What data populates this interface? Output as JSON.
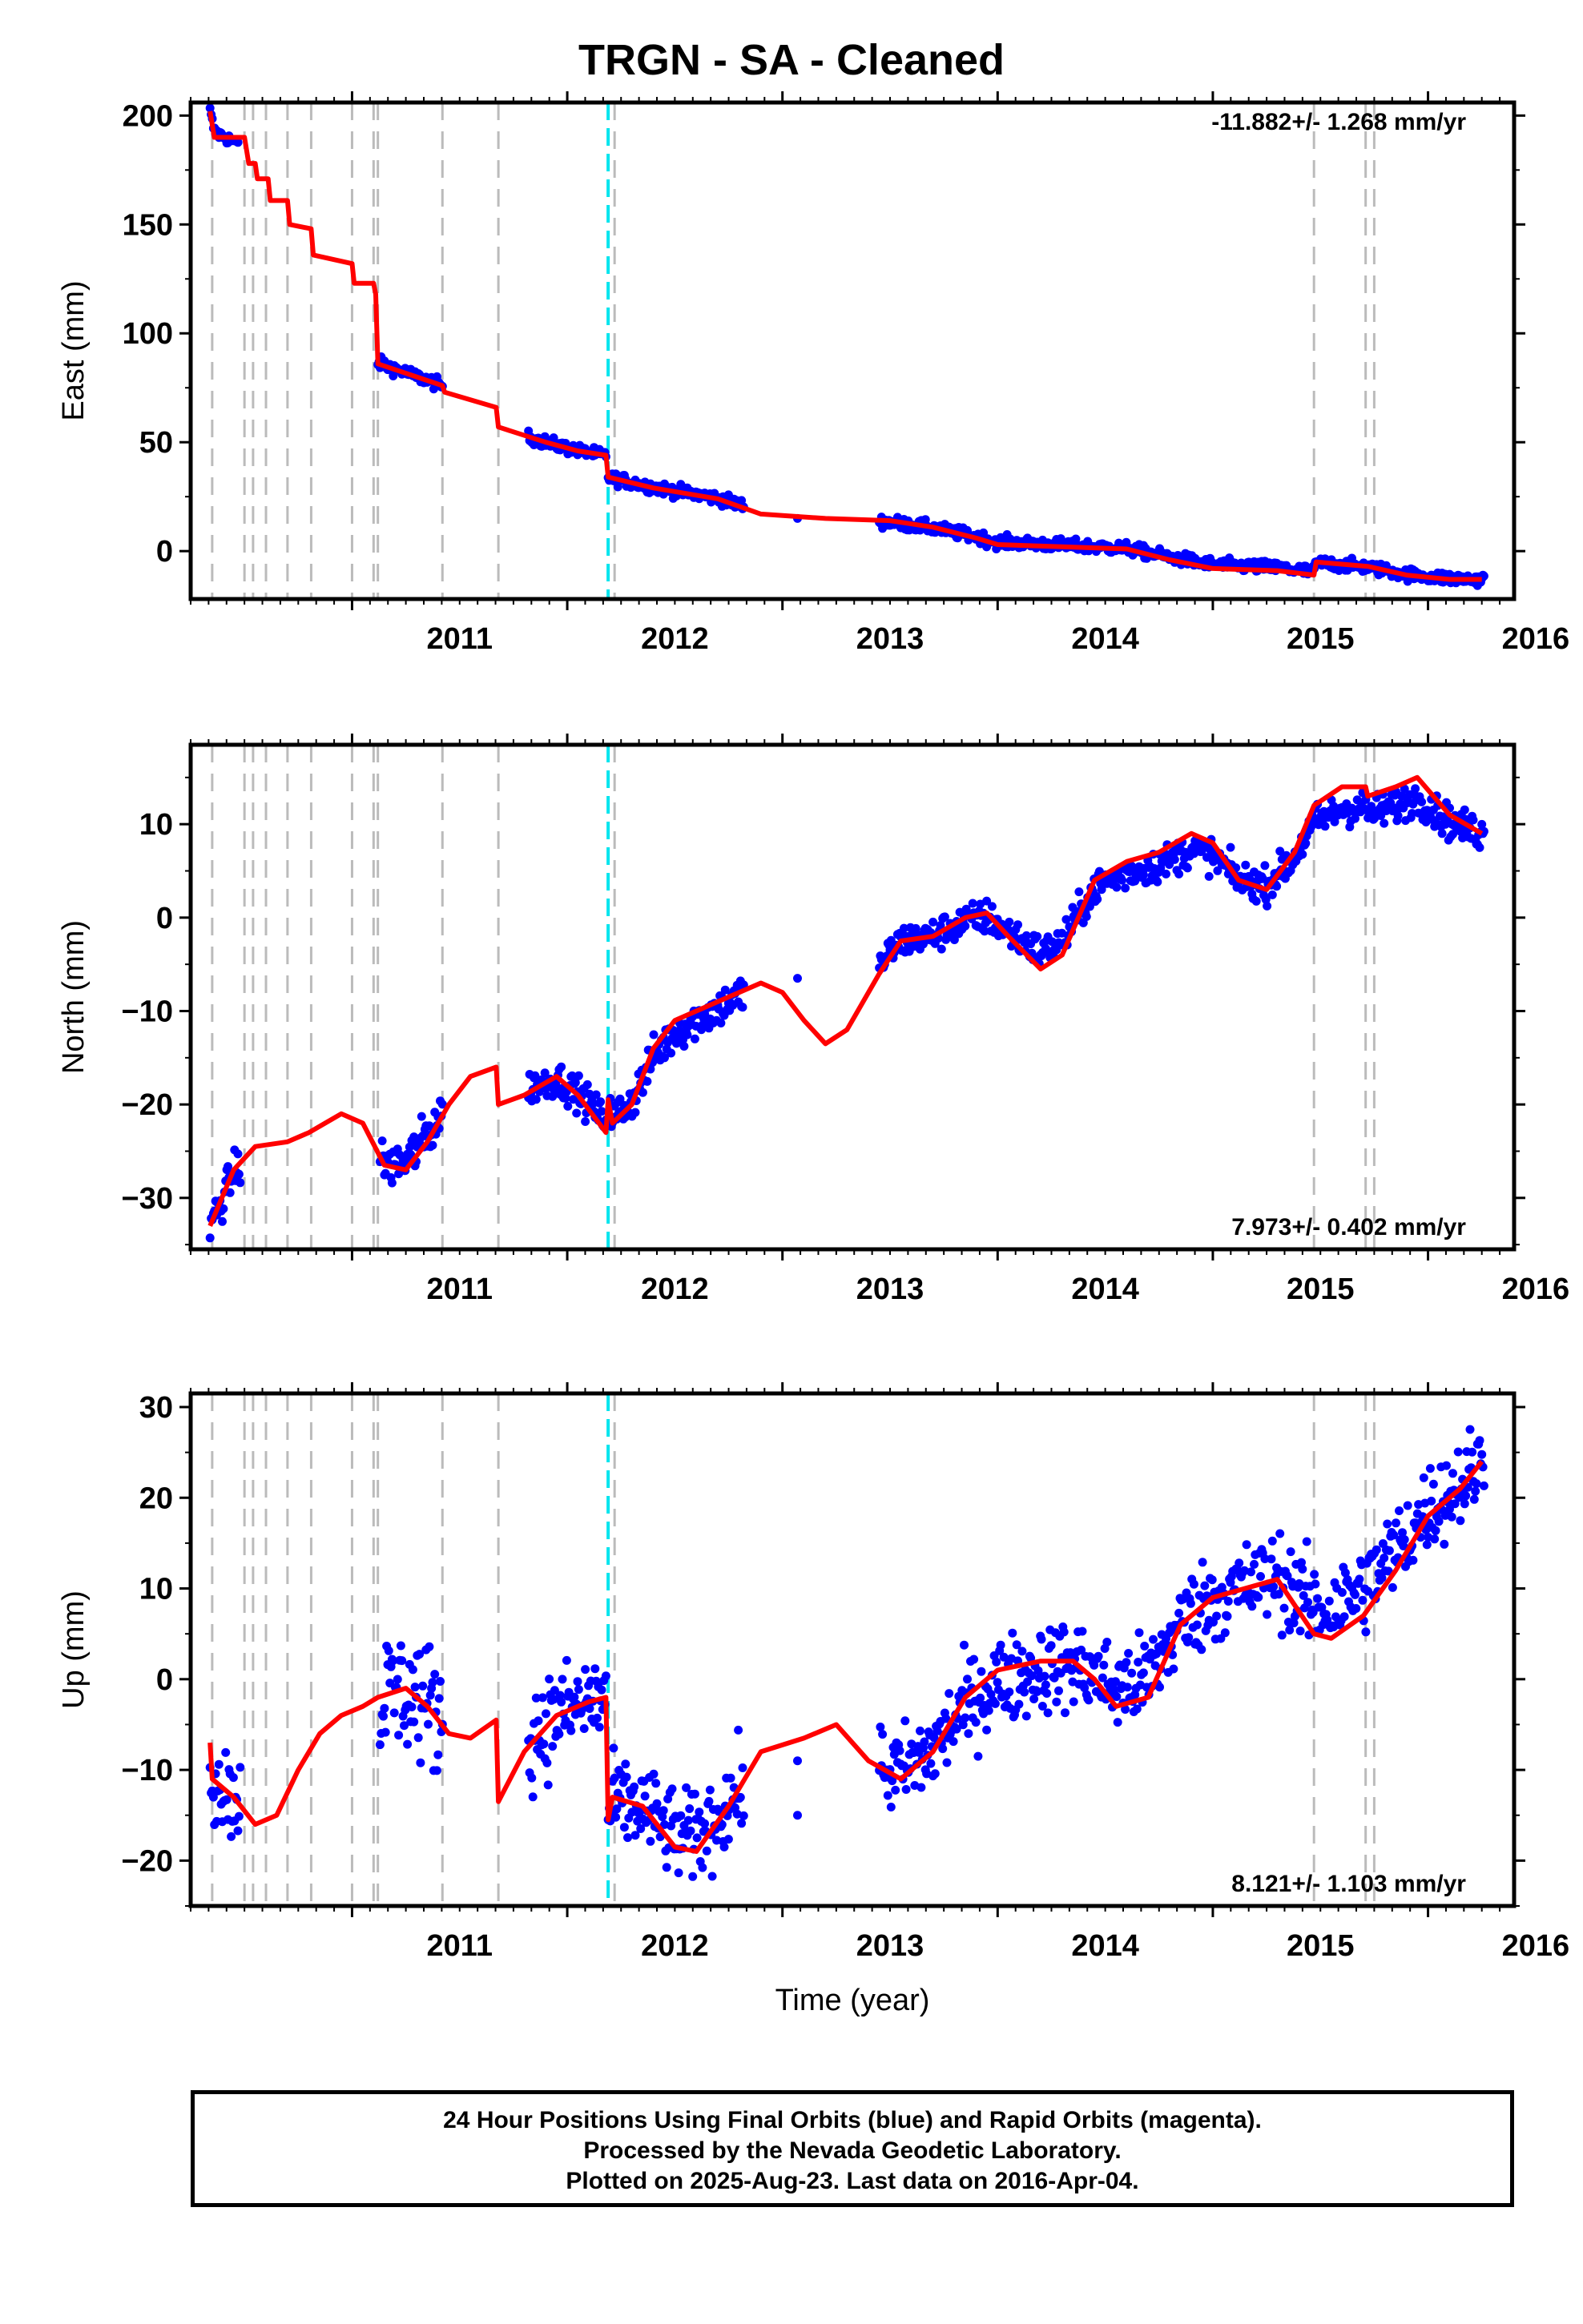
{
  "title": "TRGN  - SA - Cleaned",
  "caption": [
    "24 Hour Positions Using Final Orbits (blue) and Rapid Orbits (magenta).",
    "Processed by the Nevada Geodetic Laboratory.",
    "Plotted on 2025-Aug-23. Last data on 2016-Apr-04."
  ],
  "colors": {
    "data": "#0000ff",
    "model": "#ff0000",
    "event_gray": "#bbbbbb",
    "event_cyan": "#00e5ee"
  },
  "chart_data": [
    {
      "type": "scatter",
      "ylabel": "East (mm)",
      "xlabel": "",
      "xlim": [
        2010.25,
        2016.4
      ],
      "ylim": [
        -22,
        206
      ],
      "yticks": [
        0,
        50,
        100,
        150,
        200
      ],
      "xticks": [
        2011,
        2012,
        2013,
        2014,
        2015,
        2016
      ],
      "rate": "-11.882+/- 1.268 mm/yr",
      "rate_position": "top-right",
      "gray_events": [
        2010.35,
        2010.5,
        2010.54,
        2010.6,
        2010.7,
        2010.81,
        2011.0,
        2011.1,
        2011.12,
        2011.42,
        2011.68,
        2012.22,
        2015.47,
        2015.71,
        2015.75
      ],
      "cyan_events": [
        2012.19
      ],
      "model": [
        [
          2010.34,
          202
        ],
        [
          2010.36,
          190
        ],
        [
          2010.5,
          190
        ],
        [
          2010.52,
          178
        ],
        [
          2010.55,
          178
        ],
        [
          2010.56,
          171
        ],
        [
          2010.61,
          171
        ],
        [
          2010.62,
          161
        ],
        [
          2010.7,
          161
        ],
        [
          2010.71,
          150
        ],
        [
          2010.81,
          148
        ],
        [
          2010.82,
          136
        ],
        [
          2011.0,
          132
        ],
        [
          2011.01,
          123
        ],
        [
          2011.1,
          123
        ],
        [
          2011.11,
          118
        ],
        [
          2011.12,
          86
        ],
        [
          2011.3,
          80
        ],
        [
          2011.42,
          76
        ],
        [
          2011.43,
          73
        ],
        [
          2011.67,
          66
        ],
        [
          2011.68,
          57
        ],
        [
          2011.9,
          50
        ],
        [
          2012.05,
          46
        ],
        [
          2012.18,
          44
        ],
        [
          2012.19,
          34
        ],
        [
          2012.4,
          29
        ],
        [
          2012.7,
          24
        ],
        [
          2012.9,
          17
        ],
        [
          2013.2,
          15
        ],
        [
          2013.5,
          14
        ],
        [
          2013.7,
          11
        ],
        [
          2013.9,
          6
        ],
        [
          2014.0,
          3
        ],
        [
          2014.3,
          2
        ],
        [
          2014.6,
          1
        ],
        [
          2014.8,
          -4
        ],
        [
          2015.0,
          -8
        ],
        [
          2015.3,
          -9
        ],
        [
          2015.47,
          -11
        ],
        [
          2015.48,
          -5
        ],
        [
          2015.6,
          -6
        ],
        [
          2015.72,
          -7
        ],
        [
          2015.9,
          -11
        ],
        [
          2016.1,
          -13
        ],
        [
          2016.25,
          -13
        ]
      ],
      "segments": [
        {
          "from": 2010.34,
          "to": 2010.47,
          "start": 202,
          "end": 180,
          "scatter": 2
        },
        {
          "from": 2011.12,
          "to": 2011.42,
          "start": 88,
          "end": 76,
          "scatter": 2
        },
        {
          "from": 2011.82,
          "to": 2012.18,
          "start": 52,
          "end": 43,
          "scatter": 2
        },
        {
          "from": 2012.19,
          "to": 2012.82,
          "start": 34,
          "end": 23,
          "scatter": 2
        },
        {
          "from": 2013.45,
          "to": 2016.26,
          "start": 12,
          "end": -13,
          "scatter": 2
        }
      ],
      "isolated": [
        [
          2013.07,
          15
        ]
      ]
    },
    {
      "type": "scatter",
      "ylabel": "North (mm)",
      "xlabel": "",
      "xlim": [
        2010.25,
        2016.4
      ],
      "ylim": [
        -35.5,
        18.5
      ],
      "yticks": [
        -30,
        -20,
        -10,
        0,
        10
      ],
      "xticks": [
        2011,
        2012,
        2013,
        2014,
        2015,
        2016
      ],
      "rate": "7.973+/- 0.402 mm/yr",
      "rate_position": "bottom-right",
      "gray_events": [
        2010.35,
        2010.5,
        2010.54,
        2010.6,
        2010.7,
        2010.81,
        2011.0,
        2011.1,
        2011.12,
        2011.42,
        2011.68,
        2012.22,
        2015.47,
        2015.71,
        2015.75
      ],
      "cyan_events": [
        2012.19
      ],
      "model": [
        [
          2010.34,
          -33
        ],
        [
          2010.45,
          -27
        ],
        [
          2010.55,
          -24.5
        ],
        [
          2010.7,
          -24
        ],
        [
          2010.8,
          -23
        ],
        [
          2010.95,
          -21
        ],
        [
          2011.05,
          -22
        ],
        [
          2011.15,
          -26.5
        ],
        [
          2011.25,
          -27
        ],
        [
          2011.35,
          -24
        ],
        [
          2011.45,
          -20
        ],
        [
          2011.55,
          -17
        ],
        [
          2011.67,
          -16
        ],
        [
          2011.68,
          -20
        ],
        [
          2011.8,
          -19
        ],
        [
          2011.95,
          -17
        ],
        [
          2012.05,
          -19
        ],
        [
          2012.18,
          -23
        ],
        [
          2012.19,
          -19.5
        ],
        [
          2012.21,
          -22
        ],
        [
          2012.3,
          -20
        ],
        [
          2012.4,
          -14
        ],
        [
          2012.5,
          -11
        ],
        [
          2012.7,
          -9
        ],
        [
          2012.9,
          -7
        ],
        [
          2013.0,
          -8
        ],
        [
          2013.1,
          -11
        ],
        [
          2013.2,
          -13.5
        ],
        [
          2013.3,
          -12
        ],
        [
          2013.45,
          -6
        ],
        [
          2013.55,
          -2.5
        ],
        [
          2013.7,
          -2
        ],
        [
          2013.85,
          0
        ],
        [
          2013.95,
          0.5
        ],
        [
          2014.05,
          -2
        ],
        [
          2014.2,
          -5.5
        ],
        [
          2014.3,
          -4
        ],
        [
          2014.45,
          4
        ],
        [
          2014.6,
          6
        ],
        [
          2014.75,
          7
        ],
        [
          2014.9,
          9
        ],
        [
          2015.0,
          8
        ],
        [
          2015.12,
          4
        ],
        [
          2015.25,
          3
        ],
        [
          2015.38,
          7
        ],
        [
          2015.47,
          12
        ],
        [
          2015.6,
          14
        ],
        [
          2015.71,
          14
        ],
        [
          2015.72,
          13
        ],
        [
          2015.85,
          14
        ],
        [
          2015.95,
          15
        ],
        [
          2016.1,
          11
        ],
        [
          2016.25,
          9
        ]
      ],
      "segments": [
        {
          "from": 2010.34,
          "to": 2010.48,
          "start": -33,
          "end": -27,
          "scatter": 1.5
        },
        {
          "from": 2011.13,
          "to": 2011.42,
          "start": -27,
          "end": -20,
          "scatter": 1.8
        },
        {
          "from": 2011.82,
          "to": 2012.18,
          "start": -17,
          "end": -19,
          "scatter": 1.3
        },
        {
          "from": 2012.19,
          "to": 2012.82,
          "start": -21,
          "end": -9,
          "scatter": 1.5
        },
        {
          "from": 2013.45,
          "to": 2016.26,
          "start": -3,
          "end": 9,
          "scatter": 1.3
        }
      ],
      "isolated": [
        [
          2013.07,
          -6.5
        ]
      ]
    },
    {
      "type": "scatter",
      "ylabel": "Up (mm)",
      "xlabel": "Time (year)",
      "xlim": [
        2010.25,
        2016.4
      ],
      "ylim": [
        -25,
        31.5
      ],
      "yticks": [
        -20,
        -10,
        0,
        10,
        20,
        30
      ],
      "xticks": [
        2011,
        2012,
        2013,
        2014,
        2015,
        2016
      ],
      "rate": "8.121+/- 1.103 mm/yr",
      "rate_position": "bottom-right",
      "gray_events": [
        2010.35,
        2010.5,
        2010.54,
        2010.6,
        2010.7,
        2010.81,
        2011.0,
        2011.1,
        2011.12,
        2011.42,
        2011.68,
        2012.22,
        2015.47,
        2015.71,
        2015.75
      ],
      "cyan_events": [
        2012.19
      ],
      "model": [
        [
          2010.34,
          -7
        ],
        [
          2010.35,
          -11
        ],
        [
          2010.45,
          -13
        ],
        [
          2010.55,
          -16
        ],
        [
          2010.65,
          -15
        ],
        [
          2010.75,
          -10
        ],
        [
          2010.85,
          -6
        ],
        [
          2010.95,
          -4
        ],
        [
          2011.05,
          -3
        ],
        [
          2011.12,
          -2
        ],
        [
          2011.25,
          -1
        ],
        [
          2011.35,
          -3
        ],
        [
          2011.45,
          -6
        ],
        [
          2011.55,
          -6.5
        ],
        [
          2011.67,
          -4.5
        ],
        [
          2011.68,
          -13.5
        ],
        [
          2011.8,
          -8
        ],
        [
          2011.95,
          -4
        ],
        [
          2012.1,
          -2.5
        ],
        [
          2012.18,
          -2
        ],
        [
          2012.19,
          -15.5
        ],
        [
          2012.21,
          -13
        ],
        [
          2012.35,
          -14
        ],
        [
          2012.5,
          -18.5
        ],
        [
          2012.6,
          -19
        ],
        [
          2012.75,
          -14
        ],
        [
          2012.9,
          -8
        ],
        [
          2013.1,
          -6.5
        ],
        [
          2013.25,
          -5
        ],
        [
          2013.4,
          -9
        ],
        [
          2013.55,
          -11
        ],
        [
          2013.7,
          -8
        ],
        [
          2013.85,
          -2
        ],
        [
          2014.0,
          1
        ],
        [
          2014.2,
          2
        ],
        [
          2014.35,
          2
        ],
        [
          2014.45,
          0
        ],
        [
          2014.55,
          -3
        ],
        [
          2014.7,
          -2
        ],
        [
          2014.85,
          6
        ],
        [
          2015.0,
          9
        ],
        [
          2015.15,
          10
        ],
        [
          2015.3,
          11
        ],
        [
          2015.47,
          5
        ],
        [
          2015.55,
          4.5
        ],
        [
          2015.7,
          7
        ],
        [
          2015.85,
          12
        ],
        [
          2016.0,
          18
        ],
        [
          2016.15,
          21
        ],
        [
          2016.25,
          24
        ]
      ],
      "segments": [
        {
          "from": 2010.34,
          "to": 2010.48,
          "start": -10,
          "end": -13,
          "scatter": 4
        },
        {
          "from": 2011.13,
          "to": 2011.42,
          "start": -1,
          "end": -3,
          "scatter": 5
        },
        {
          "from": 2011.82,
          "to": 2012.18,
          "start": -5,
          "end": -2,
          "scatter": 4
        },
        {
          "from": 2012.19,
          "to": 2012.82,
          "start": -15,
          "end": -13,
          "scatter": 3.5
        },
        {
          "from": 2013.45,
          "to": 2016.26,
          "start": -10,
          "end": 24,
          "scatter": 3.5
        }
      ],
      "isolated": [
        [
          2013.07,
          -9
        ],
        [
          2013.07,
          -15
        ]
      ]
    }
  ]
}
